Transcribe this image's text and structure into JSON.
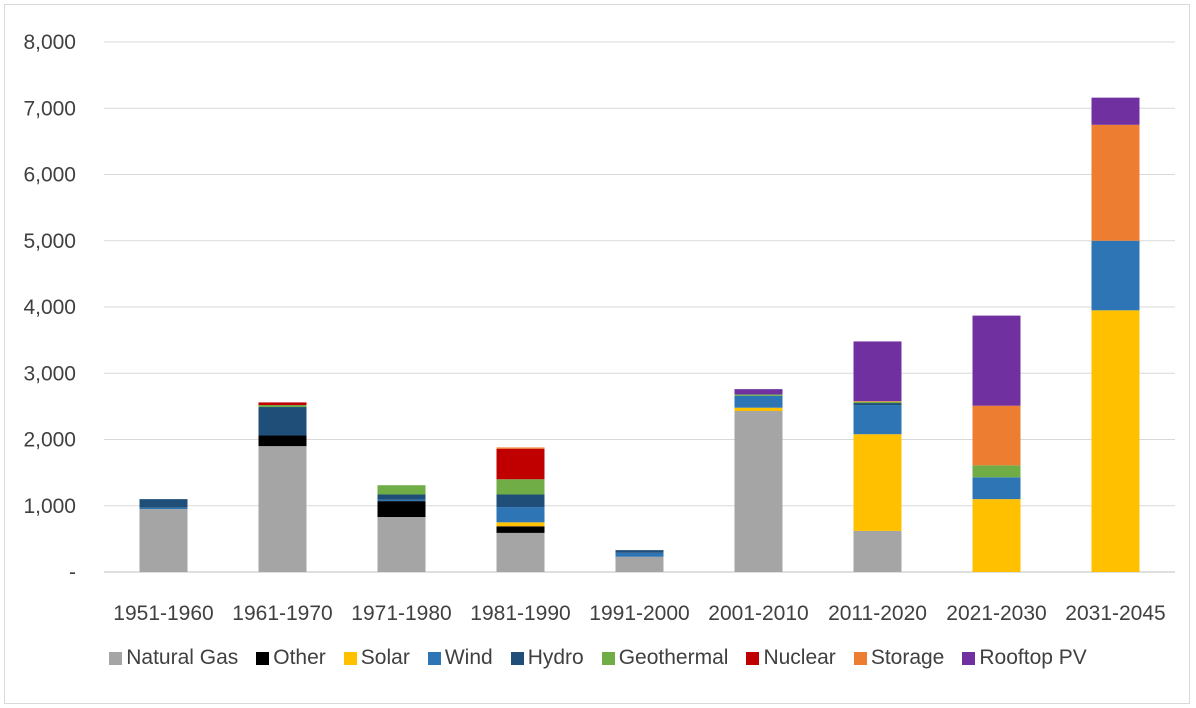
{
  "chart_data": {
    "type": "bar",
    "stacked": true,
    "categories": [
      "1951-1960",
      "1961-1970",
      "1971-1980",
      "1981-1990",
      "1991-2000",
      "2001-2010",
      "2011-2020",
      "2021-2030",
      "2031-2045"
    ],
    "ylim": [
      0,
      8000
    ],
    "yticks": [
      0,
      1000,
      2000,
      3000,
      4000,
      5000,
      6000,
      7000,
      8000
    ],
    "ytick_labels": [
      "-",
      "1,000",
      "2,000",
      "3,000",
      "4,000",
      "5,000",
      "6,000",
      "7,000",
      "8,000"
    ],
    "grid": true,
    "legend_position": "bottom",
    "series": [
      {
        "name": "Natural Gas",
        "color": "#a5a5a5",
        "values": [
          950,
          1900,
          830,
          590,
          230,
          2430,
          620,
          0,
          0
        ]
      },
      {
        "name": "Other",
        "color": "#000000",
        "values": [
          0,
          160,
          240,
          100,
          0,
          0,
          0,
          0,
          0
        ]
      },
      {
        "name": "Solar",
        "color": "#ffc000",
        "values": [
          0,
          0,
          0,
          60,
          0,
          50,
          1460,
          1100,
          3950
        ]
      },
      {
        "name": "Wind",
        "color": "#2e75b6",
        "values": [
          20,
          0,
          20,
          230,
          60,
          180,
          440,
          330,
          1050
        ]
      },
      {
        "name": "Hydro",
        "color": "#1f4e79",
        "values": [
          130,
          430,
          80,
          190,
          40,
          0,
          30,
          0,
          0
        ]
      },
      {
        "name": "Geothermal",
        "color": "#70ad47",
        "values": [
          0,
          30,
          140,
          230,
          0,
          20,
          20,
          180,
          0
        ]
      },
      {
        "name": "Nuclear",
        "color": "#c00000",
        "values": [
          0,
          40,
          0,
          460,
          0,
          0,
          0,
          0,
          0
        ]
      },
      {
        "name": "Storage",
        "color": "#ed7d31",
        "values": [
          0,
          0,
          0,
          20,
          0,
          0,
          10,
          900,
          1750
        ]
      },
      {
        "name": "Rooftop PV",
        "color": "#7030a0",
        "values": [
          0,
          0,
          0,
          0,
          0,
          80,
          900,
          1360,
          410
        ]
      }
    ]
  }
}
